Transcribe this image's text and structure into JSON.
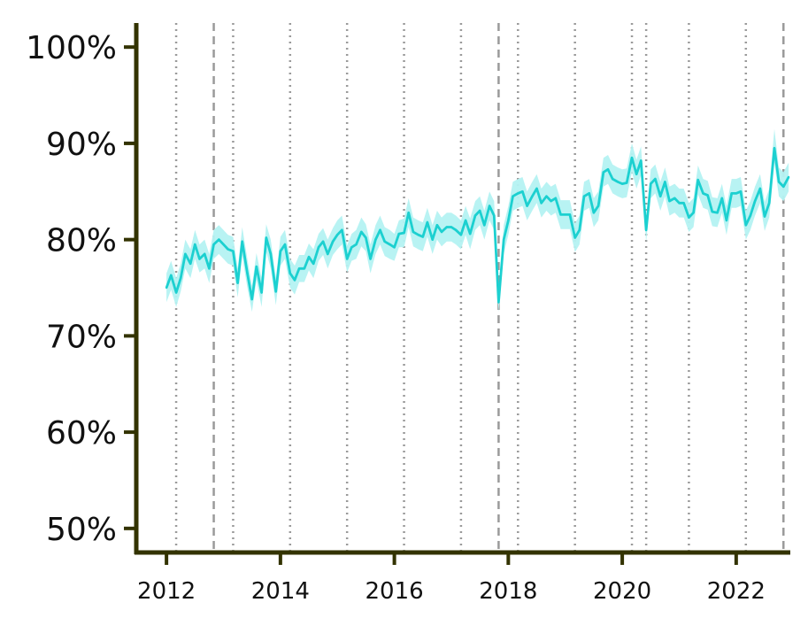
{
  "chart_data": {
    "type": "line",
    "title": "",
    "xlabel": "",
    "ylabel": "",
    "xlim": [
      2011.47,
      2022.95
    ],
    "ylim": [
      47.5,
      102.5
    ],
    "x_ticks": [
      2012,
      2014,
      2016,
      2018,
      2020,
      2022
    ],
    "x_tick_labels": [
      "2012",
      "2014",
      "2016",
      "2018",
      "2020",
      "2022"
    ],
    "y_ticks": [
      50,
      60,
      70,
      80,
      90,
      100
    ],
    "y_tick_labels": [
      "50%",
      "60%",
      "70%",
      "80%",
      "90%",
      "100%"
    ],
    "grid": false,
    "legend": "none",
    "colors": {
      "line": "#1cd0d0",
      "band": "#b4f2f2",
      "axis": "#333300",
      "vline": "#9a9a9a"
    },
    "vlines_dashed": [
      2012.83,
      2017.83,
      2022.83
    ],
    "vlines_dotted": [
      2012.17,
      2013.17,
      2014.17,
      2015.17,
      2016.17,
      2017.17,
      2018.17,
      2019.17,
      2020.17,
      2020.42,
      2021.17,
      2022.17
    ],
    "series": [
      {
        "x": [
          2012.0,
          2012.08,
          2012.17,
          2012.25,
          2012.33,
          2012.42,
          2012.5,
          2012.58,
          2012.67,
          2012.75,
          2012.83,
          2012.92,
          2013.0,
          2013.08,
          2013.17,
          2013.25,
          2013.33,
          2013.42,
          2013.5,
          2013.58,
          2013.67,
          2013.75,
          2013.83,
          2013.92,
          2014.0,
          2014.08,
          2014.17,
          2014.25,
          2014.33,
          2014.42,
          2014.5,
          2014.58,
          2014.67,
          2014.75,
          2014.83,
          2014.92,
          2015.0,
          2015.08,
          2015.17,
          2015.25,
          2015.33,
          2015.42,
          2015.5,
          2015.58,
          2015.67,
          2015.75,
          2015.83,
          2015.92,
          2016.0,
          2016.08,
          2016.17,
          2016.25,
          2016.33,
          2016.42,
          2016.5,
          2016.58,
          2016.67,
          2016.75,
          2016.83,
          2016.92,
          2017.0,
          2017.08,
          2017.17,
          2017.25,
          2017.33,
          2017.42,
          2017.5,
          2017.58,
          2017.67,
          2017.75,
          2017.83,
          2017.92,
          2018.0,
          2018.08,
          2018.17,
          2018.25,
          2018.33,
          2018.42,
          2018.5,
          2018.58,
          2018.67,
          2018.75,
          2018.83,
          2018.92,
          2019.0,
          2019.08,
          2019.17,
          2019.25,
          2019.33,
          2019.42,
          2019.5,
          2019.58,
          2019.67,
          2019.75,
          2019.83,
          2019.92,
          2020.0,
          2020.08,
          2020.17,
          2020.25,
          2020.33,
          2020.42,
          2020.5,
          2020.58,
          2020.67,
          2020.75,
          2020.83,
          2020.92,
          2021.0,
          2021.08,
          2021.17,
          2021.25,
          2021.33,
          2021.42,
          2021.5,
          2021.58,
          2021.67,
          2021.75,
          2021.83,
          2021.92,
          2022.0,
          2022.08,
          2022.17,
          2022.25,
          2022.33,
          2022.42,
          2022.5,
          2022.58,
          2022.67,
          2022.75,
          2022.83,
          2022.92
        ],
        "values": [
          75.0,
          76.3,
          74.5,
          76.0,
          78.5,
          77.5,
          79.5,
          78.0,
          78.5,
          77.0,
          79.5,
          80.0,
          79.5,
          79.0,
          78.8,
          75.5,
          79.8,
          76.5,
          73.8,
          77.2,
          74.5,
          80.2,
          78.5,
          74.6,
          78.8,
          79.5,
          76.5,
          75.8,
          77.0,
          77.0,
          78.2,
          77.5,
          79.2,
          79.8,
          78.5,
          79.8,
          80.5,
          81.0,
          78.0,
          79.2,
          79.5,
          80.8,
          80.2,
          78.0,
          80.0,
          81.0,
          79.8,
          79.5,
          79.2,
          80.6,
          80.7,
          82.8,
          80.8,
          80.5,
          80.3,
          81.8,
          80.0,
          81.5,
          80.8,
          81.3,
          81.3,
          81.0,
          80.5,
          82.0,
          80.6,
          82.5,
          83.0,
          81.5,
          83.5,
          82.5,
          73.5,
          80.0,
          82.0,
          84.5,
          84.8,
          85.0,
          83.5,
          84.5,
          85.3,
          83.8,
          84.5,
          84.0,
          84.3,
          82.6,
          82.6,
          82.6,
          80.2,
          81.0,
          84.5,
          84.8,
          82.8,
          83.5,
          87.0,
          87.3,
          86.3,
          86.0,
          85.8,
          85.9,
          88.5,
          86.8,
          88.2,
          81.0,
          85.8,
          86.3,
          84.5,
          86.0,
          84.0,
          84.3,
          83.8,
          83.8,
          82.3,
          82.8,
          86.2,
          84.8,
          84.6,
          82.9,
          82.8,
          84.3,
          82.0,
          84.8,
          84.8,
          85.0,
          81.5,
          82.5,
          84.0,
          85.3,
          82.4,
          83.8,
          89.5,
          86.0,
          85.5,
          86.5
        ],
        "lower": [
          73.5,
          74.8,
          73.0,
          74.6,
          77.0,
          76.0,
          78.0,
          76.6,
          77.0,
          75.5,
          78.0,
          78.5,
          78.0,
          77.5,
          77.3,
          74.0,
          78.3,
          75.0,
          72.5,
          75.8,
          73.0,
          78.8,
          77.0,
          73.2,
          77.3,
          78.0,
          75.0,
          74.3,
          75.6,
          75.6,
          76.8,
          76.0,
          77.8,
          78.4,
          77.0,
          78.4,
          79.0,
          79.5,
          76.6,
          77.8,
          78.0,
          79.3,
          78.8,
          76.5,
          78.5,
          79.5,
          78.3,
          78.0,
          77.8,
          79.2,
          79.2,
          81.3,
          79.3,
          79.0,
          78.8,
          80.3,
          78.5,
          80.0,
          79.3,
          79.8,
          79.8,
          79.5,
          79.0,
          80.5,
          79.0,
          81.0,
          81.5,
          80.0,
          82.0,
          81.0,
          72.5,
          78.5,
          80.5,
          83.0,
          83.3,
          83.5,
          82.0,
          83.0,
          83.8,
          82.3,
          83.0,
          82.5,
          82.8,
          81.1,
          81.1,
          81.1,
          78.7,
          79.5,
          83.0,
          83.3,
          81.3,
          82.0,
          85.5,
          85.8,
          84.8,
          84.5,
          84.3,
          84.4,
          87.0,
          85.3,
          86.7,
          79.8,
          84.3,
          84.8,
          83.0,
          84.5,
          82.5,
          82.8,
          82.3,
          82.3,
          80.8,
          81.3,
          84.7,
          83.3,
          83.1,
          81.4,
          81.3,
          82.8,
          80.5,
          83.3,
          83.3,
          83.5,
          80.0,
          81.0,
          82.5,
          83.8,
          80.9,
          82.3,
          88.0,
          84.5,
          84.0,
          85.0
        ],
        "upper": [
          76.5,
          77.8,
          76.0,
          77.5,
          80.0,
          79.0,
          81.0,
          79.5,
          80.0,
          78.5,
          81.0,
          81.5,
          81.0,
          80.5,
          80.3,
          77.0,
          81.3,
          78.0,
          75.2,
          78.6,
          76.0,
          81.6,
          80.0,
          76.0,
          80.3,
          81.0,
          78.0,
          77.3,
          78.4,
          78.4,
          79.6,
          79.0,
          80.6,
          81.2,
          80.0,
          81.2,
          82.0,
          82.5,
          79.4,
          80.6,
          81.0,
          82.3,
          81.6,
          79.5,
          81.5,
          82.5,
          81.3,
          81.0,
          80.6,
          82.0,
          82.2,
          84.3,
          82.3,
          82.0,
          81.8,
          83.3,
          81.5,
          83.0,
          82.3,
          82.8,
          82.8,
          82.5,
          82.0,
          83.5,
          82.2,
          84.0,
          84.5,
          83.0,
          85.0,
          84.0,
          74.5,
          81.5,
          83.5,
          86.0,
          86.3,
          86.5,
          85.0,
          86.0,
          86.8,
          85.3,
          86.0,
          85.5,
          85.8,
          84.1,
          84.1,
          84.1,
          81.7,
          82.5,
          86.0,
          86.3,
          84.3,
          85.0,
          88.5,
          88.8,
          87.8,
          87.5,
          87.3,
          87.4,
          90.0,
          88.3,
          89.7,
          82.2,
          87.3,
          87.8,
          86.0,
          87.5,
          85.5,
          85.8,
          85.3,
          85.3,
          83.8,
          84.3,
          87.7,
          86.3,
          86.1,
          84.4,
          84.3,
          85.8,
          83.5,
          86.3,
          86.3,
          86.5,
          83.0,
          84.0,
          85.5,
          86.8,
          83.9,
          85.3,
          91.5,
          87.5,
          87.0,
          88.0
        ]
      }
    ]
  }
}
